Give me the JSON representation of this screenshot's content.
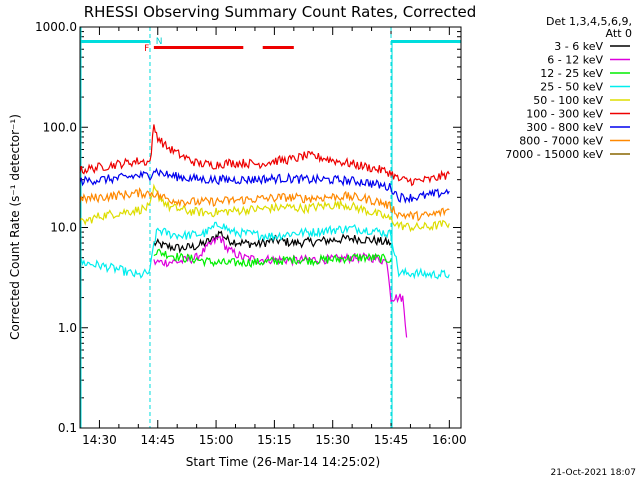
{
  "chart_data": {
    "type": "line",
    "title": "RHESSI Observing Summary Count Rates, Corrected",
    "xlabel": "Start Time (26-Mar-14 14:25:02)",
    "ylabel": "Corrected Count Rate (s⁻¹ detector⁻¹)",
    "y_scale": "log",
    "ylim": [
      0.1,
      1000
    ],
    "xlim_minutes": [
      0,
      98
    ],
    "x_ticks": [
      {
        "m": 5,
        "label": "14:30"
      },
      {
        "m": 20,
        "label": "14:45"
      },
      {
        "m": 35,
        "label": "15:00"
      },
      {
        "m": 50,
        "label": "15:15"
      },
      {
        "m": 65,
        "label": "15:30"
      },
      {
        "m": 80,
        "label": "15:45"
      },
      {
        "m": 95,
        "label": "16:00"
      }
    ],
    "y_ticks": [
      {
        "v": 0.1,
        "label": "0.1"
      },
      {
        "v": 1,
        "label": "1.0"
      },
      {
        "v": 10,
        "label": "10.0"
      },
      {
        "v": 100,
        "label": "100.0"
      },
      {
        "v": 1000,
        "label": "1000.0"
      }
    ],
    "legend_header": [
      "Det 1,3,4,5,6,9,",
      "Att 0"
    ],
    "footer_date": "21-Oct-2021 18:07",
    "flags": {
      "night_bars": [
        [
          0,
          18
        ],
        [
          80,
          98
        ]
      ],
      "night_label": "N",
      "flare_label": "F",
      "flare_bars": [
        [
          19,
          42
        ],
        [
          47,
          55
        ]
      ],
      "dashed_lines": [
        18,
        80,
        98
      ]
    },
    "series": [
      {
        "name": "3 - 6 keV",
        "color": "#000000",
        "points": [
          [
            19,
            7
          ],
          [
            22,
            6.5
          ],
          [
            26,
            6.2
          ],
          [
            30,
            6.5
          ],
          [
            34,
            7.5
          ],
          [
            36,
            9
          ],
          [
            38,
            7.5
          ],
          [
            42,
            7
          ],
          [
            46,
            6.8
          ],
          [
            50,
            7.5
          ],
          [
            55,
            7
          ],
          [
            60,
            7.2
          ],
          [
            65,
            7.5
          ],
          [
            70,
            7.8
          ],
          [
            75,
            7.5
          ],
          [
            80,
            7
          ]
        ]
      },
      {
        "name": "6 - 12 keV",
        "color": "#dd00dd",
        "points": [
          [
            19,
            4.5
          ],
          [
            22,
            4.5
          ],
          [
            26,
            4.6
          ],
          [
            30,
            5
          ],
          [
            34,
            7
          ],
          [
            36,
            8
          ],
          [
            38,
            6
          ],
          [
            42,
            5
          ],
          [
            46,
            4.8
          ],
          [
            50,
            4.8
          ],
          [
            55,
            4.7
          ],
          [
            60,
            4.8
          ],
          [
            65,
            4.8
          ],
          [
            70,
            5
          ],
          [
            75,
            5
          ],
          [
            79,
            4.6
          ],
          [
            80,
            2
          ],
          [
            83,
            2
          ],
          [
            84,
            0.8
          ]
        ]
      },
      {
        "name": "12 - 25 keV",
        "color": "#00ee00",
        "points": [
          [
            19,
            5.8
          ],
          [
            22,
            5.5
          ],
          [
            26,
            5
          ],
          [
            30,
            4.8
          ],
          [
            34,
            4.5
          ],
          [
            38,
            4.4
          ],
          [
            42,
            4.5
          ],
          [
            46,
            4.5
          ],
          [
            50,
            4.6
          ],
          [
            55,
            4.8
          ],
          [
            60,
            4.7
          ],
          [
            65,
            4.8
          ],
          [
            70,
            5
          ],
          [
            75,
            5
          ],
          [
            80,
            4.8
          ]
        ]
      },
      {
        "name": "25 - 50 keV",
        "color": "#00eeee",
        "points": [
          [
            0,
            4.5
          ],
          [
            5,
            4.2
          ],
          [
            10,
            3.8
          ],
          [
            15,
            3.3
          ],
          [
            18,
            3.6
          ],
          [
            19,
            7
          ],
          [
            20,
            9.5
          ],
          [
            23,
            8.6
          ],
          [
            27,
            8.3
          ],
          [
            32,
            8.7
          ],
          [
            36,
            11
          ],
          [
            39,
            9
          ],
          [
            45,
            8.5
          ],
          [
            50,
            8.2
          ],
          [
            55,
            8.8
          ],
          [
            60,
            9
          ],
          [
            65,
            9.5
          ],
          [
            70,
            9.8
          ],
          [
            75,
            9.4
          ],
          [
            80,
            8.6
          ],
          [
            82,
            3.5
          ],
          [
            86,
            3.5
          ],
          [
            90,
            3.4
          ],
          [
            95,
            3.4
          ]
        ]
      },
      {
        "name": "50 - 100 keV",
        "color": "#dddd00",
        "points": [
          [
            0,
            11
          ],
          [
            5,
            13
          ],
          [
            10,
            14
          ],
          [
            15,
            15
          ],
          [
            18,
            16
          ],
          [
            19,
            24
          ],
          [
            20,
            21
          ],
          [
            23,
            16
          ],
          [
            28,
            14.5
          ],
          [
            33,
            14
          ],
          [
            38,
            14.5
          ],
          [
            43,
            15
          ],
          [
            48,
            15.5
          ],
          [
            53,
            16
          ],
          [
            58,
            15.5
          ],
          [
            63,
            16.5
          ],
          [
            68,
            17
          ],
          [
            73,
            15
          ],
          [
            78,
            13
          ],
          [
            80,
            12
          ],
          [
            82,
            10.5
          ],
          [
            86,
            10
          ],
          [
            90,
            10.2
          ],
          [
            95,
            11
          ]
        ]
      },
      {
        "name": "100 - 300 keV",
        "color": "#ee0000",
        "points": [
          [
            0,
            37
          ],
          [
            5,
            40
          ],
          [
            10,
            43
          ],
          [
            15,
            46
          ],
          [
            18,
            45
          ],
          [
            19,
            100
          ],
          [
            20,
            80
          ],
          [
            22,
            65
          ],
          [
            26,
            52
          ],
          [
            30,
            44
          ],
          [
            34,
            42
          ],
          [
            38,
            44
          ],
          [
            42,
            44
          ],
          [
            46,
            43
          ],
          [
            50,
            46
          ],
          [
            55,
            48
          ],
          [
            58,
            52
          ],
          [
            62,
            50
          ],
          [
            66,
            46
          ],
          [
            70,
            43
          ],
          [
            74,
            40
          ],
          [
            78,
            37
          ],
          [
            80,
            35
          ],
          [
            82,
            30
          ],
          [
            86,
            29
          ],
          [
            90,
            30
          ],
          [
            95,
            34
          ]
        ]
      },
      {
        "name": "300 - 800 keV",
        "color": "#0000ee",
        "points": [
          [
            0,
            29
          ],
          [
            5,
            30
          ],
          [
            10,
            31
          ],
          [
            15,
            33
          ],
          [
            18,
            33
          ],
          [
            19,
            38
          ],
          [
            20,
            36
          ],
          [
            23,
            33
          ],
          [
            28,
            31
          ],
          [
            33,
            30
          ],
          [
            38,
            30
          ],
          [
            43,
            30
          ],
          [
            48,
            30.5
          ],
          [
            53,
            31
          ],
          [
            58,
            30
          ],
          [
            63,
            30
          ],
          [
            68,
            29.5
          ],
          [
            73,
            28.5
          ],
          [
            78,
            26
          ],
          [
            80,
            25
          ],
          [
            82,
            20
          ],
          [
            86,
            20
          ],
          [
            90,
            21
          ],
          [
            95,
            23
          ]
        ]
      },
      {
        "name": "800 - 7000 keV",
        "color": "#ff8800",
        "points": [
          [
            0,
            19
          ],
          [
            5,
            20
          ],
          [
            10,
            21
          ],
          [
            15,
            22
          ],
          [
            18,
            22
          ],
          [
            19,
            22
          ],
          [
            20,
            21
          ],
          [
            23,
            19
          ],
          [
            28,
            18
          ],
          [
            33,
            18
          ],
          [
            38,
            18.5
          ],
          [
            43,
            19
          ],
          [
            48,
            19.5
          ],
          [
            53,
            20
          ],
          [
            58,
            19.5
          ],
          [
            63,
            20
          ],
          [
            68,
            20.5
          ],
          [
            73,
            19.5
          ],
          [
            78,
            17.5
          ],
          [
            80,
            16
          ],
          [
            82,
            13.5
          ],
          [
            86,
            13
          ],
          [
            90,
            13.2
          ],
          [
            95,
            15
          ]
        ]
      },
      {
        "name": "7000 - 15000 keV",
        "color": "#886600",
        "points": []
      }
    ]
  }
}
